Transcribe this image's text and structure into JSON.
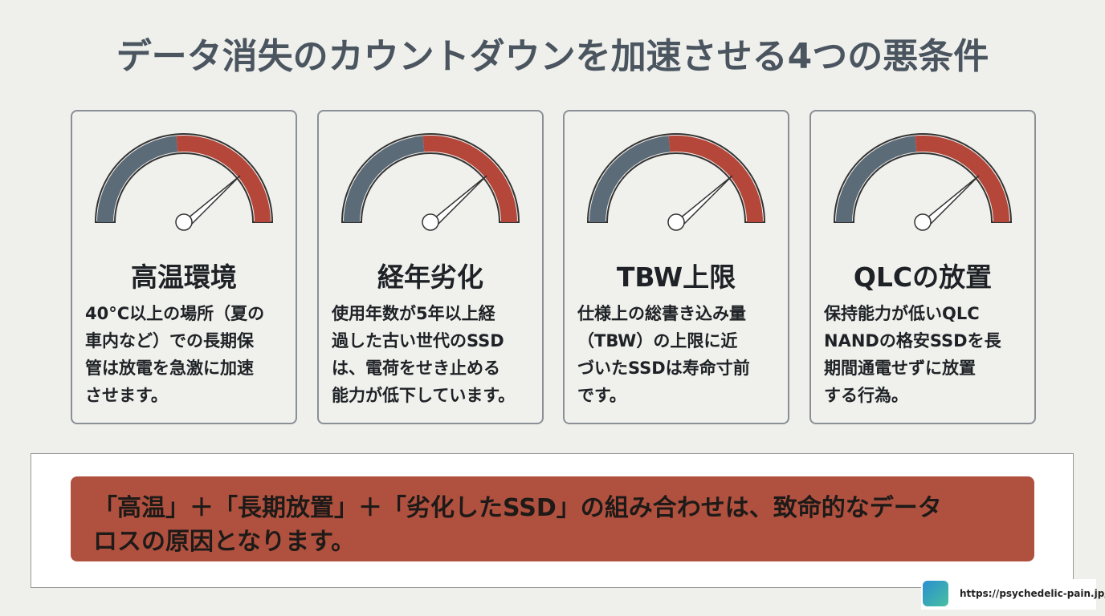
{
  "header": {
    "title": "データ消失のカウントダウンを加速させる4つの悪条件"
  },
  "cards": [
    {
      "title": "高温環境",
      "lines": [
        "40°C以上の場所（夏の",
        "車内など）での長期保",
        "管は放電を急激に加速",
        "させます。"
      ]
    },
    {
      "title": "経年劣化",
      "lines": [
        "使用年数が5年以上経",
        "過した古い世代のSSD",
        "は、電荷をせき止める",
        "能力が低下しています。"
      ]
    },
    {
      "title": "TBW上限",
      "lines": [
        "仕様上の総書き込み量",
        "（TBW）の上限に近",
        "づいたSSDは寿命寸前",
        "です。"
      ]
    },
    {
      "title": "QLCの放置",
      "lines": [
        "保持能力が低いQLC",
        "NANDの格安SSDを長",
        "期間通電せずに放置",
        "する行為。"
      ]
    }
  ],
  "banner": {
    "lines": [
      "「高温」＋「長期放置」＋「劣化したSSD」の組み合わせは、致命的なデータ",
      "ロスの原因となります。"
    ]
  },
  "watermark": {
    "url": "https://psychedelic-pain.jp/"
  }
}
